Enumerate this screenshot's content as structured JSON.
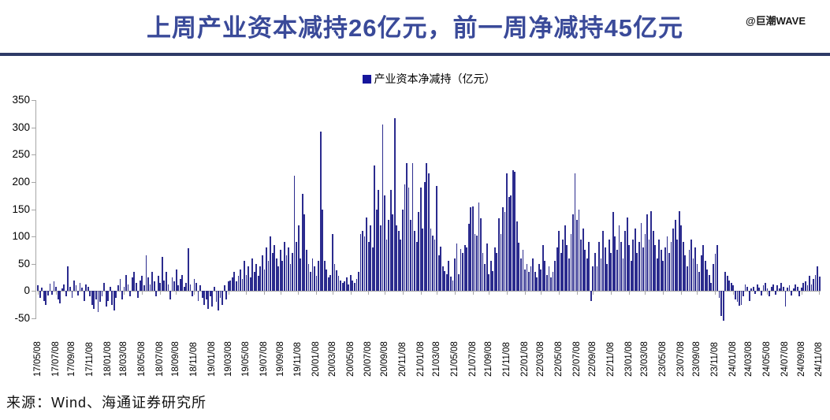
{
  "header": {
    "title": "上周产业资本减持26亿元，前一周净减持45亿元",
    "watermark": "@巨潮WAVE"
  },
  "legend": {
    "label": "产业资本净减持（亿元）"
  },
  "source": {
    "text": "来源：Wind、海通证券研究所"
  },
  "colors": {
    "title": "#3A4A99",
    "divider": "#2E3A66",
    "bar": "#2B2B8E",
    "axis": "#A6A6A6",
    "legend_swatch": "#16169C"
  },
  "chart_data": {
    "type": "bar",
    "title": "产业资本净减持（亿元）",
    "xlabel": "",
    "ylabel": "",
    "ylim": [
      -50,
      350
    ],
    "y_ticks": [
      350,
      300,
      250,
      200,
      150,
      100,
      50,
      0,
      -50
    ],
    "grid": false,
    "legend_position": "top-center",
    "x_labels": [
      "17/05/08",
      "17/07/08",
      "17/09/08",
      "17/11/08",
      "18/01/08",
      "18/03/08",
      "18/05/08",
      "18/07/08",
      "18/09/08",
      "18/11/08",
      "19/01/08",
      "19/03/08",
      "19/05/08",
      "19/07/08",
      "19/09/08",
      "19/11/08",
      "20/01/08",
      "20/03/08",
      "20/05/08",
      "20/07/08",
      "20/09/08",
      "20/11/08",
      "21/01/08",
      "21/03/08",
      "21/05/08",
      "21/07/08",
      "21/09/08",
      "21/11/08",
      "22/01/08",
      "22/03/08",
      "22/05/08",
      "22/07/08",
      "22/09/08",
      "22/11/08",
      "23/01/08",
      "23/03/08",
      "23/05/08",
      "23/07/08",
      "23/09/08",
      "23/11/08",
      "24/01/08",
      "24/03/08",
      "24/05/08",
      "24/07/08",
      "24/09/08",
      "24/11/08"
    ],
    "values": [
      10,
      -12,
      6,
      -18,
      -25,
      -8,
      14,
      -6,
      18,
      8,
      -15,
      -22,
      5,
      12,
      -10,
      45,
      8,
      -12,
      20,
      10,
      -8,
      15,
      6,
      -18,
      12,
      8,
      -10,
      -25,
      -32,
      -15,
      -38,
      -20,
      -10,
      15,
      -28,
      -18,
      8,
      -25,
      -35,
      -12,
      10,
      22,
      -15,
      8,
      30,
      12,
      -10,
      25,
      35,
      15,
      -12,
      20,
      28,
      10,
      65,
      25,
      12,
      35,
      18,
      -10,
      28,
      15,
      62,
      20,
      35,
      12,
      -15,
      25,
      18,
      40,
      10,
      22,
      30,
      8,
      15,
      78,
      12,
      -10,
      22,
      15,
      -18,
      10,
      -12,
      -25,
      -15,
      -32,
      -10,
      -28,
      8,
      -20,
      -35,
      -12,
      -25,
      10,
      -15,
      18,
      20,
      25,
      35,
      18,
      28,
      40,
      22,
      55,
      30,
      45,
      25,
      60,
      35,
      50,
      28,
      45,
      65,
      40,
      80,
      55,
      100,
      70,
      85,
      60,
      45,
      75,
      55,
      90,
      65,
      80,
      50,
      70,
      212,
      90,
      120,
      60,
      178,
      140,
      75,
      50,
      35,
      60,
      45,
      28,
      55,
      292,
      150,
      55,
      40,
      25,
      30,
      105,
      50,
      38,
      28,
      20,
      15,
      18,
      25,
      12,
      30,
      20,
      15,
      22,
      35,
      105,
      110,
      100,
      135,
      90,
      120,
      80,
      230,
      150,
      185,
      120,
      305,
      175,
      95,
      130,
      185,
      140,
      317,
      120,
      110,
      95,
      150,
      195,
      235,
      190,
      130,
      235,
      110,
      90,
      145,
      190,
      115,
      200,
      235,
      215,
      114,
      101,
      94,
      192,
      65,
      82,
      45,
      36,
      31,
      55,
      26,
      19,
      60,
      87,
      31,
      77,
      70,
      84,
      80,
      123,
      153,
      155,
      104,
      101,
      162,
      133,
      70,
      50,
      87,
      31,
      55,
      36,
      80,
      70,
      133,
      104,
      153,
      145,
      216,
      172,
      175,
      221,
      219,
      128,
      89,
      60,
      75,
      40,
      50,
      35,
      45,
      60,
      35,
      25,
      50,
      40,
      85,
      55,
      30,
      45,
      25,
      35,
      55,
      80,
      110,
      70,
      95,
      120,
      85,
      60,
      105,
      140,
      216,
      130,
      150,
      95,
      115,
      75,
      60,
      90,
      -18,
      45,
      70,
      45,
      90,
      60,
      110,
      80,
      50,
      95,
      70,
      145,
      100,
      75,
      120,
      90,
      60,
      110,
      135,
      85,
      55,
      95,
      115,
      70,
      90,
      125,
      80,
      105,
      140,
      95,
      147,
      110,
      85,
      60,
      95,
      75,
      55,
      80,
      100,
      70,
      90,
      115,
      130,
      95,
      147,
      120,
      90,
      65,
      45,
      75,
      95,
      60,
      80,
      50,
      35,
      65,
      85,
      55,
      40,
      30,
      15,
      50,
      68,
      85,
      -12,
      -45,
      -55,
      35,
      28,
      20,
      15,
      10,
      -15,
      -20,
      -27,
      -25,
      -10,
      12,
      8,
      -18,
      5,
      8,
      -5,
      12,
      6,
      -8,
      10,
      15,
      5,
      -10,
      8,
      12,
      -6,
      10,
      5,
      15,
      8,
      -28,
      6,
      10,
      -8,
      5,
      12,
      8,
      -10,
      6,
      15,
      18,
      10,
      28,
      12,
      22,
      30,
      45,
      26
    ]
  }
}
